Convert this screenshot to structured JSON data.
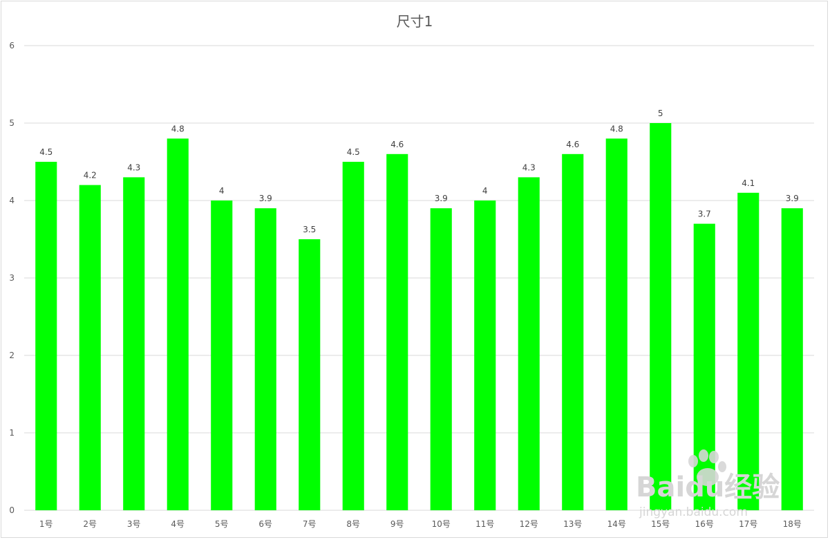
{
  "chart_data": {
    "type": "bar",
    "title": "尺寸1",
    "xlabel": "",
    "ylabel": "",
    "categories": [
      "1号",
      "2号",
      "3号",
      "4号",
      "5号",
      "6号",
      "7号",
      "8号",
      "9号",
      "10号",
      "11号",
      "12号",
      "13号",
      "14号",
      "15号",
      "16号",
      "17号",
      "18号"
    ],
    "values": [
      4.5,
      4.2,
      4.3,
      4.8,
      4,
      3.9,
      3.5,
      4.5,
      4.6,
      3.9,
      4,
      4.3,
      4.6,
      4.8,
      5,
      3.7,
      4.1,
      3.9
    ],
    "ylim": [
      0,
      6
    ],
    "yticks": [
      "0",
      "1",
      "2",
      "3",
      "4",
      "5",
      "6"
    ],
    "grid": true,
    "legend": "none",
    "data_labels": true,
    "colors": {
      "bar": "#00ff00",
      "grid": "#d9d9d9",
      "axis_text": "#595959"
    }
  },
  "watermark": {
    "brand": "Baidu经验",
    "url": "jingyan.baidu.com",
    "icon": "paw-icon"
  }
}
